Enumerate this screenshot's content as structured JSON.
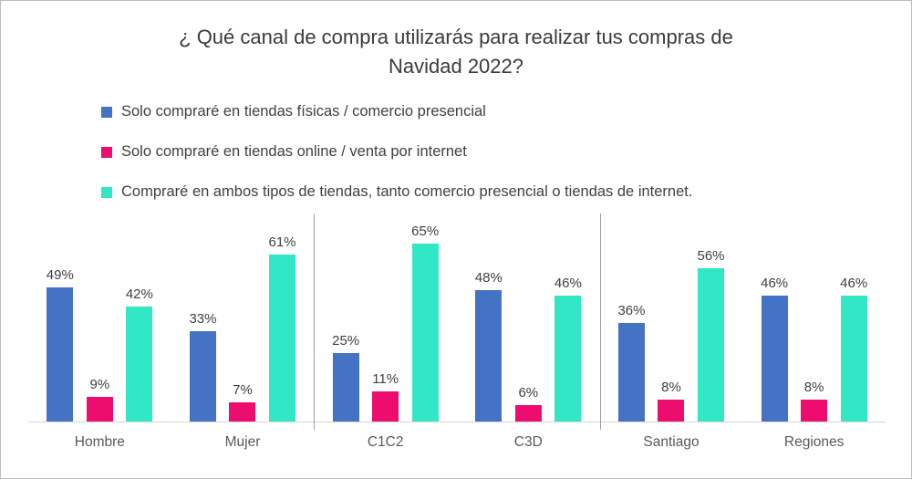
{
  "header": {
    "title_line1": "¿ Qué canal de compra utilizarás para realizar tus compras de",
    "title_line2": "Navidad 2022?"
  },
  "chart_data": {
    "type": "bar",
    "title": "¿ Qué canal de compra utilizarás para realizar tus compras de Navidad 2022?",
    "categories": [
      "Hombre",
      "Mujer",
      "C1C2",
      "C3D",
      "Santiago",
      "Regiones"
    ],
    "series": [
      {
        "name": "Solo compraré en tiendas físicas / comercio presencial",
        "color": "#4472C4",
        "values": [
          49,
          33,
          25,
          48,
          36,
          46
        ]
      },
      {
        "name": "Solo compraré en tiendas online / venta por internet",
        "color": "#EC0D6E",
        "values": [
          9,
          7,
          11,
          6,
          8,
          8
        ]
      },
      {
        "name": "Compraré en ambos tipos de tiendas, tanto comercio presencial o tiendas de internet.",
        "color": "#31E7C5",
        "values": [
          42,
          61,
          65,
          46,
          56,
          46
        ]
      }
    ],
    "value_suffix": "%",
    "ylim": [
      0,
      70
    ],
    "grid": false,
    "legend_position": "top-left",
    "group_separators_after": [
      1,
      3
    ]
  }
}
